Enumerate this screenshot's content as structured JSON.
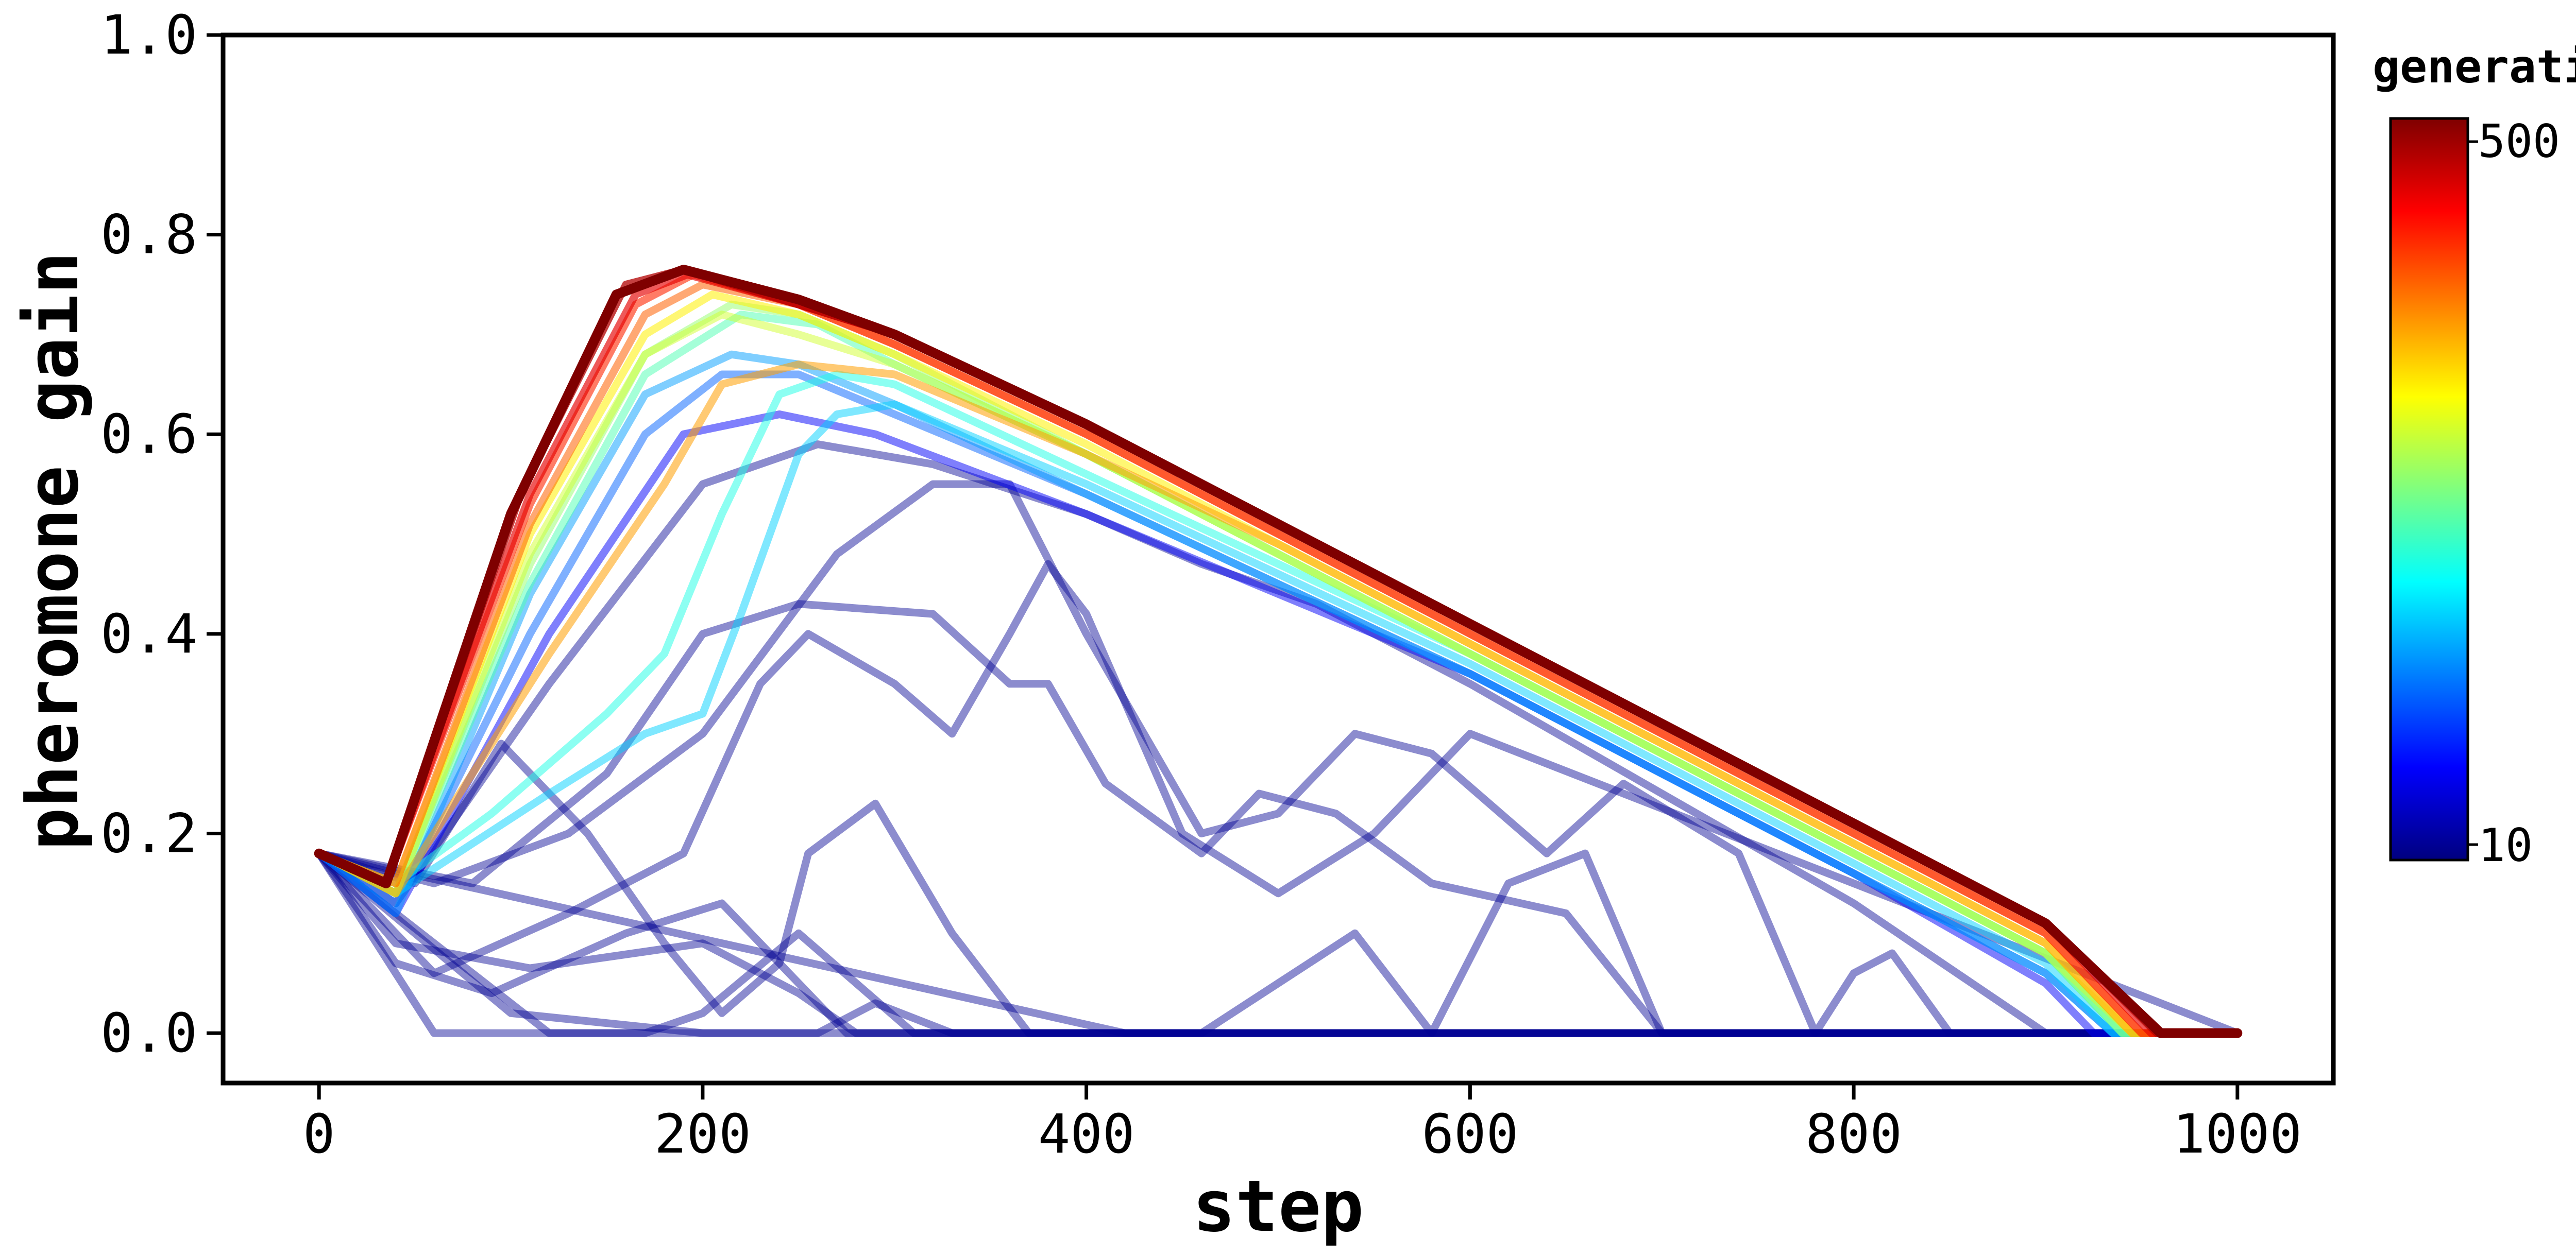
{
  "chart_data": {
    "type": "line",
    "title": "",
    "xlabel": "step",
    "ylabel": "pheromone gain",
    "xlim": [
      -50,
      1050
    ],
    "ylim": [
      -0.05,
      1.0
    ],
    "xticks": [
      "0",
      "200",
      "400",
      "600",
      "800",
      "1000"
    ],
    "yticks": [
      "0.0",
      "0.2",
      "0.4",
      "0.6",
      "0.8",
      "1.0"
    ],
    "grid": false,
    "colorbar": {
      "label": "generation",
      "min_label": "10",
      "max_label": "500",
      "colormap": "jet",
      "colors": [
        "#00007f",
        "#0000ff",
        "#007fff",
        "#00ffff",
        "#7fff7f",
        "#ffff00",
        "#ff7f00",
        "#ff0000",
        "#7f0000"
      ]
    },
    "series": [
      {
        "g": 0.02,
        "alpha": 0.45,
        "x": [
          0,
          60,
          1000
        ],
        "y": [
          0.18,
          0.0,
          0.0
        ]
      },
      {
        "g": 0.02,
        "alpha": 0.45,
        "x": [
          0,
          40,
          110,
          200,
          250,
          280,
          1000
        ],
        "y": [
          0.18,
          0.09,
          0.065,
          0.09,
          0.04,
          0.0,
          0.0
        ]
      },
      {
        "g": 0.02,
        "alpha": 0.45,
        "x": [
          0,
          40,
          90,
          160,
          210,
          245,
          275,
          1000
        ],
        "y": [
          0.18,
          0.07,
          0.04,
          0.1,
          0.13,
          0.06,
          0.0,
          0.0
        ]
      },
      {
        "g": 0.02,
        "alpha": 0.45,
        "x": [
          0,
          50,
          95,
          140,
          180,
          210,
          240,
          255,
          290,
          330,
          370,
          1000
        ],
        "y": [
          0.18,
          0.15,
          0.29,
          0.2,
          0.09,
          0.02,
          0.07,
          0.18,
          0.23,
          0.1,
          0.0,
          0.0
        ]
      },
      {
        "g": 0.02,
        "alpha": 0.45,
        "x": [
          0,
          120,
          170,
          200,
          250,
          310,
          1000
        ],
        "y": [
          0.18,
          0.0,
          0.0,
          0.02,
          0.1,
          0.0,
          0.0
        ]
      },
      {
        "g": 0.02,
        "alpha": 0.45,
        "x": [
          0,
          60,
          130,
          190,
          230,
          255,
          300,
          330,
          360,
          380,
          400,
          450,
          500,
          550,
          600,
          1000
        ],
        "y": [
          0.18,
          0.06,
          0.12,
          0.18,
          0.35,
          0.4,
          0.35,
          0.3,
          0.4,
          0.47,
          0.42,
          0.2,
          0.14,
          0.2,
          0.3,
          0.0
        ]
      },
      {
        "g": 0.02,
        "alpha": 0.45,
        "x": [
          0,
          80,
          150,
          200,
          250,
          320,
          360,
          380,
          410,
          460,
          490,
          530,
          580,
          650,
          700,
          1000
        ],
        "y": [
          0.18,
          0.15,
          0.26,
          0.4,
          0.43,
          0.42,
          0.35,
          0.35,
          0.25,
          0.18,
          0.24,
          0.22,
          0.15,
          0.12,
          0.0,
          0.0
        ]
      },
      {
        "g": 0.02,
        "alpha": 0.45,
        "x": [
          0,
          60,
          130,
          200,
          270,
          320,
          360,
          400,
          460,
          500,
          540,
          580,
          610,
          640,
          680,
          740,
          780,
          800,
          820,
          850,
          1000
        ],
        "y": [
          0.18,
          0.15,
          0.2,
          0.3,
          0.48,
          0.55,
          0.55,
          0.4,
          0.2,
          0.22,
          0.3,
          0.28,
          0.23,
          0.18,
          0.25,
          0.18,
          0.0,
          0.06,
          0.08,
          0.0,
          0.0
        ]
      },
      {
        "g": 0.02,
        "alpha": 0.45,
        "x": [
          0,
          100,
          200,
          260,
          290,
          330,
          350,
          1000
        ],
        "y": [
          0.18,
          0.02,
          0.0,
          0.0,
          0.03,
          0.0,
          0.0,
          0.0
        ]
      },
      {
        "g": 0.02,
        "alpha": 0.45,
        "x": [
          0,
          420,
          460,
          500,
          540,
          580,
          620,
          660,
          700,
          750,
          790,
          1000
        ],
        "y": [
          0.18,
          0.0,
          0.0,
          0.05,
          0.1,
          0.0,
          0.15,
          0.18,
          0.0,
          0.0,
          0.0,
          0.0
        ]
      },
      {
        "g": 0.02,
        "alpha": 0.45,
        "x": [
          0,
          40,
          120,
          200,
          260,
          320,
          400,
          460,
          520,
          600,
          700,
          800,
          900,
          930,
          1000
        ],
        "y": [
          0.18,
          0.13,
          0.35,
          0.55,
          0.59,
          0.57,
          0.52,
          0.47,
          0.43,
          0.35,
          0.24,
          0.13,
          0.0,
          0.0,
          0.0
        ]
      },
      {
        "g": 0.12,
        "alpha": 0.5,
        "x": [
          0,
          40,
          120,
          190,
          240,
          290,
          400,
          500,
          600,
          700,
          800,
          900,
          925,
          1000
        ],
        "y": [
          0.18,
          0.12,
          0.4,
          0.6,
          0.62,
          0.6,
          0.52,
          0.44,
          0.36,
          0.26,
          0.16,
          0.05,
          0.0,
          0.0
        ]
      },
      {
        "g": 0.22,
        "alpha": 0.5,
        "x": [
          0,
          40,
          110,
          170,
          210,
          250,
          300,
          400,
          500,
          600,
          700,
          800,
          900,
          935,
          1000
        ],
        "y": [
          0.18,
          0.13,
          0.4,
          0.6,
          0.66,
          0.66,
          0.62,
          0.54,
          0.45,
          0.36,
          0.26,
          0.16,
          0.06,
          0.0,
          0.0
        ]
      },
      {
        "g": 0.28,
        "alpha": 0.5,
        "x": [
          0,
          40,
          110,
          170,
          215,
          250,
          300,
          400,
          500,
          600,
          700,
          800,
          900,
          935,
          1000
        ],
        "y": [
          0.18,
          0.12,
          0.44,
          0.64,
          0.68,
          0.67,
          0.63,
          0.54,
          0.45,
          0.36,
          0.26,
          0.16,
          0.06,
          0.0,
          0.0
        ]
      },
      {
        "g": 0.33,
        "alpha": 0.5,
        "x": [
          0,
          40,
          80,
          120,
          170,
          200,
          220,
          250,
          270,
          300,
          400,
          500,
          600,
          700,
          800,
          900,
          935,
          1000
        ],
        "y": [
          0.18,
          0.14,
          0.19,
          0.24,
          0.3,
          0.32,
          0.42,
          0.58,
          0.62,
          0.63,
          0.55,
          0.46,
          0.37,
          0.27,
          0.17,
          0.07,
          0.0,
          0.0
        ]
      },
      {
        "g": 0.4,
        "alpha": 0.5,
        "x": [
          0,
          40,
          90,
          150,
          180,
          210,
          240,
          270,
          300,
          400,
          500,
          600,
          700,
          800,
          900,
          940,
          1000
        ],
        "y": [
          0.18,
          0.15,
          0.22,
          0.32,
          0.38,
          0.52,
          0.64,
          0.66,
          0.65,
          0.56,
          0.47,
          0.38,
          0.28,
          0.18,
          0.08,
          0.0,
          0.0
        ]
      },
      {
        "g": 0.45,
        "alpha": 0.5,
        "x": [
          0,
          40,
          110,
          170,
          220,
          260,
          300,
          400,
          500,
          600,
          700,
          800,
          900,
          940,
          1000
        ],
        "y": [
          0.18,
          0.14,
          0.45,
          0.66,
          0.72,
          0.71,
          0.67,
          0.58,
          0.48,
          0.38,
          0.28,
          0.18,
          0.08,
          0.0,
          0.0
        ]
      },
      {
        "g": 0.52,
        "alpha": 0.5,
        "x": [
          0,
          40,
          110,
          170,
          215,
          250,
          300,
          400,
          500,
          600,
          700,
          800,
          900,
          940,
          1000
        ],
        "y": [
          0.18,
          0.14,
          0.47,
          0.68,
          0.73,
          0.72,
          0.68,
          0.58,
          0.48,
          0.38,
          0.28,
          0.18,
          0.08,
          0.0,
          0.0
        ]
      },
      {
        "g": 0.58,
        "alpha": 0.5,
        "x": [
          0,
          40,
          110,
          170,
          210,
          250,
          300,
          400,
          500,
          600,
          700,
          800,
          900,
          945,
          1000
        ],
        "y": [
          0.18,
          0.14,
          0.48,
          0.68,
          0.72,
          0.7,
          0.67,
          0.58,
          0.48,
          0.38,
          0.28,
          0.18,
          0.08,
          0.0,
          0.0
        ]
      },
      {
        "g": 0.64,
        "alpha": 0.55,
        "x": [
          0,
          40,
          110,
          170,
          205,
          250,
          300,
          400,
          500,
          600,
          700,
          800,
          900,
          945,
          1000
        ],
        "y": [
          0.18,
          0.15,
          0.5,
          0.7,
          0.74,
          0.72,
          0.68,
          0.59,
          0.49,
          0.39,
          0.29,
          0.19,
          0.09,
          0.0,
          0.0
        ]
      },
      {
        "g": 0.72,
        "alpha": 0.55,
        "x": [
          0,
          40,
          120,
          180,
          210,
          250,
          300,
          400,
          500,
          600,
          700,
          800,
          900,
          945,
          1000
        ],
        "y": [
          0.18,
          0.14,
          0.38,
          0.55,
          0.65,
          0.67,
          0.66,
          0.58,
          0.49,
          0.39,
          0.29,
          0.19,
          0.09,
          0.0,
          0.0
        ]
      },
      {
        "g": 0.78,
        "alpha": 0.55,
        "x": [
          0,
          40,
          110,
          170,
          200,
          250,
          300,
          400,
          500,
          600,
          700,
          800,
          900,
          950,
          1000
        ],
        "y": [
          0.18,
          0.15,
          0.51,
          0.72,
          0.75,
          0.73,
          0.69,
          0.6,
          0.5,
          0.4,
          0.3,
          0.2,
          0.1,
          0.0,
          0.0
        ]
      },
      {
        "g": 0.84,
        "alpha": 0.6,
        "x": [
          0,
          35,
          110,
          165,
          195,
          250,
          300,
          400,
          500,
          600,
          700,
          800,
          900,
          950,
          1000
        ],
        "y": [
          0.18,
          0.15,
          0.53,
          0.73,
          0.76,
          0.73,
          0.69,
          0.6,
          0.5,
          0.4,
          0.3,
          0.2,
          0.1,
          0.0,
          0.0
        ]
      },
      {
        "g": 0.9,
        "alpha": 0.65,
        "x": [
          0,
          35,
          110,
          165,
          192,
          250,
          300,
          400,
          500,
          600,
          700,
          800,
          900,
          955,
          1000
        ],
        "y": [
          0.18,
          0.15,
          0.54,
          0.74,
          0.76,
          0.73,
          0.7,
          0.61,
          0.51,
          0.41,
          0.31,
          0.21,
          0.11,
          0.0,
          0.0
        ]
      },
      {
        "g": 0.95,
        "alpha": 0.75,
        "x": [
          0,
          35,
          105,
          160,
          190,
          250,
          300,
          400,
          500,
          600,
          700,
          800,
          900,
          958,
          1000
        ],
        "y": [
          0.18,
          0.15,
          0.54,
          0.75,
          0.765,
          0.73,
          0.7,
          0.61,
          0.51,
          0.41,
          0.31,
          0.21,
          0.11,
          0.0,
          0.0
        ]
      },
      {
        "g": 1.0,
        "alpha": 1.0,
        "x": [
          0,
          35,
          100,
          155,
          190,
          250,
          300,
          400,
          500,
          600,
          700,
          800,
          900,
          960,
          1000
        ],
        "y": [
          0.18,
          0.15,
          0.52,
          0.74,
          0.765,
          0.735,
          0.7,
          0.61,
          0.51,
          0.41,
          0.31,
          0.21,
          0.11,
          0.0,
          0.0
        ]
      }
    ]
  }
}
